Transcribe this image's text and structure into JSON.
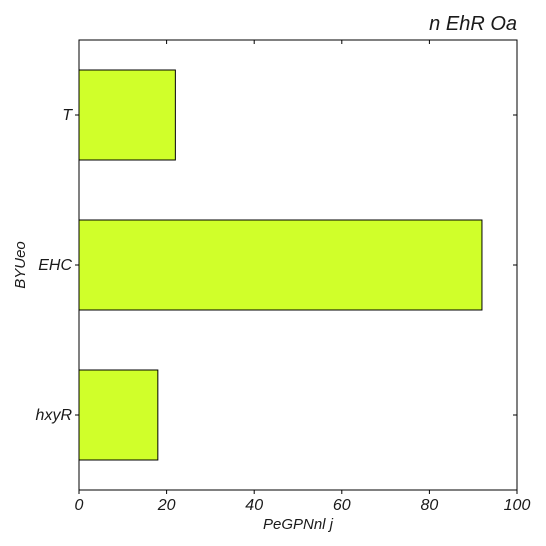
{
  "chart_data": {
    "type": "bar",
    "orientation": "horizontal",
    "title": "n EhR Oa",
    "xlabel": "PeGPNnl j",
    "ylabel": "BYUeo",
    "categories": [
      "T",
      "EHC",
      "hxyR"
    ],
    "values": [
      22,
      92,
      18
    ],
    "xlim": [
      0,
      100
    ],
    "xticks": [
      0,
      20,
      40,
      60,
      80,
      100
    ],
    "grid": false,
    "bar_color": "#d0ff2a",
    "edge_color": "#000000"
  }
}
